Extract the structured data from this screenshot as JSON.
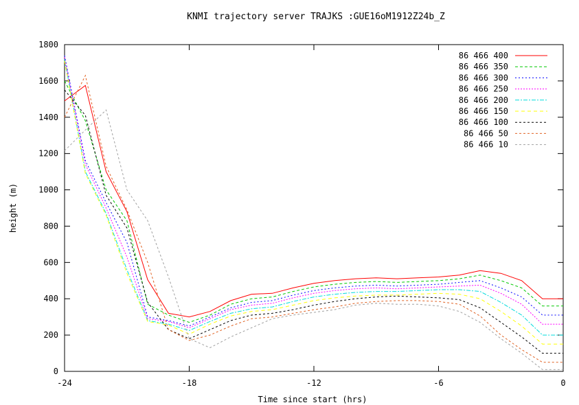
{
  "chart_data": {
    "type": "line",
    "title": "KNMI trajectory server TRAJKS :GUE16oM1912Z24b_Z",
    "xlabel": "Time since start (hrs)",
    "ylabel": "height (m)",
    "xlim": [
      -24,
      0
    ],
    "ylim": [
      0,
      1800
    ],
    "xticks": [
      -24,
      -18,
      -12,
      -6,
      0
    ],
    "yticks": [
      0,
      200,
      400,
      600,
      800,
      1000,
      1200,
      1400,
      1600,
      1800
    ],
    "grid": false,
    "legend_position": "top-right",
    "x": [
      -24,
      -23,
      -22,
      -21,
      -20,
      -19,
      -18,
      -17,
      -16,
      -15,
      -14,
      -13,
      -12,
      -11,
      -10,
      -9,
      -8,
      -7,
      -6,
      -5,
      -4,
      -3,
      -2,
      -1,
      0
    ],
    "series": [
      {
        "name": "86 466 400",
        "color": "#ff0000",
        "dash": "",
        "values": [
          1490,
          1575,
          1100,
          880,
          505,
          320,
          300,
          330,
          390,
          425,
          430,
          460,
          485,
          500,
          510,
          515,
          510,
          515,
          520,
          530,
          555,
          540,
          500,
          400,
          400
        ]
      },
      {
        "name": "86 466 350",
        "color": "#00c800",
        "dash": "4,3",
        "values": [
          1600,
          1380,
          1000,
          830,
          370,
          310,
          270,
          310,
          370,
          400,
          410,
          440,
          465,
          480,
          490,
          495,
          490,
          495,
          500,
          510,
          530,
          500,
          460,
          360,
          360
        ]
      },
      {
        "name": "86 466 300",
        "color": "#0000ff",
        "dash": "2,3",
        "values": [
          1740,
          1160,
          930,
          710,
          300,
          280,
          250,
          300,
          350,
          380,
          390,
          420,
          445,
          460,
          470,
          475,
          470,
          475,
          480,
          490,
          500,
          460,
          410,
          310,
          310
        ]
      },
      {
        "name": "86 466 250",
        "color": "#ff00ff",
        "dash": "2,2",
        "values": [
          1730,
          1140,
          900,
          630,
          290,
          275,
          240,
          290,
          340,
          365,
          375,
          405,
          430,
          445,
          455,
          460,
          455,
          460,
          465,
          470,
          475,
          430,
          370,
          260,
          260
        ]
      },
      {
        "name": "86 466 200",
        "color": "#00dcdc",
        "dash": "6,2,2,2",
        "values": [
          1720,
          1100,
          870,
          560,
          280,
          260,
          225,
          275,
          320,
          345,
          355,
          385,
          410,
          425,
          435,
          440,
          440,
          445,
          450,
          450,
          440,
          380,
          310,
          200,
          200
        ]
      },
      {
        "name": "86 466 150",
        "color": "#ffff00",
        "dash": "5,4",
        "values": [
          1710,
          1090,
          860,
          540,
          275,
          255,
          205,
          260,
          305,
          330,
          340,
          365,
          390,
          405,
          415,
          420,
          420,
          425,
          430,
          425,
          400,
          330,
          250,
          150,
          150
        ]
      },
      {
        "name": "86 466 100",
        "color": "#000000",
        "dash": "3,3",
        "values": [
          1550,
          1410,
          970,
          790,
          380,
          230,
          180,
          230,
          280,
          310,
          320,
          340,
          365,
          385,
          400,
          410,
          415,
          410,
          405,
          395,
          350,
          270,
          190,
          100,
          100
        ]
      },
      {
        "name": "86 466 50",
        "color": "#e06020",
        "dash": "3,3",
        "values": [
          1400,
          1630,
          1130,
          890,
          600,
          230,
          170,
          200,
          250,
          290,
          300,
          320,
          340,
          355,
          375,
          385,
          390,
          390,
          385,
          370,
          305,
          200,
          120,
          50,
          50
        ]
      },
      {
        "name": "86 466 10",
        "color": "#a0a0a0",
        "dash": "3,3",
        "values": [
          1215,
          1330,
          1440,
          1000,
          830,
          520,
          180,
          130,
          190,
          240,
          290,
          310,
          325,
          340,
          365,
          375,
          370,
          370,
          360,
          330,
          270,
          180,
          100,
          10,
          10
        ]
      }
    ]
  }
}
